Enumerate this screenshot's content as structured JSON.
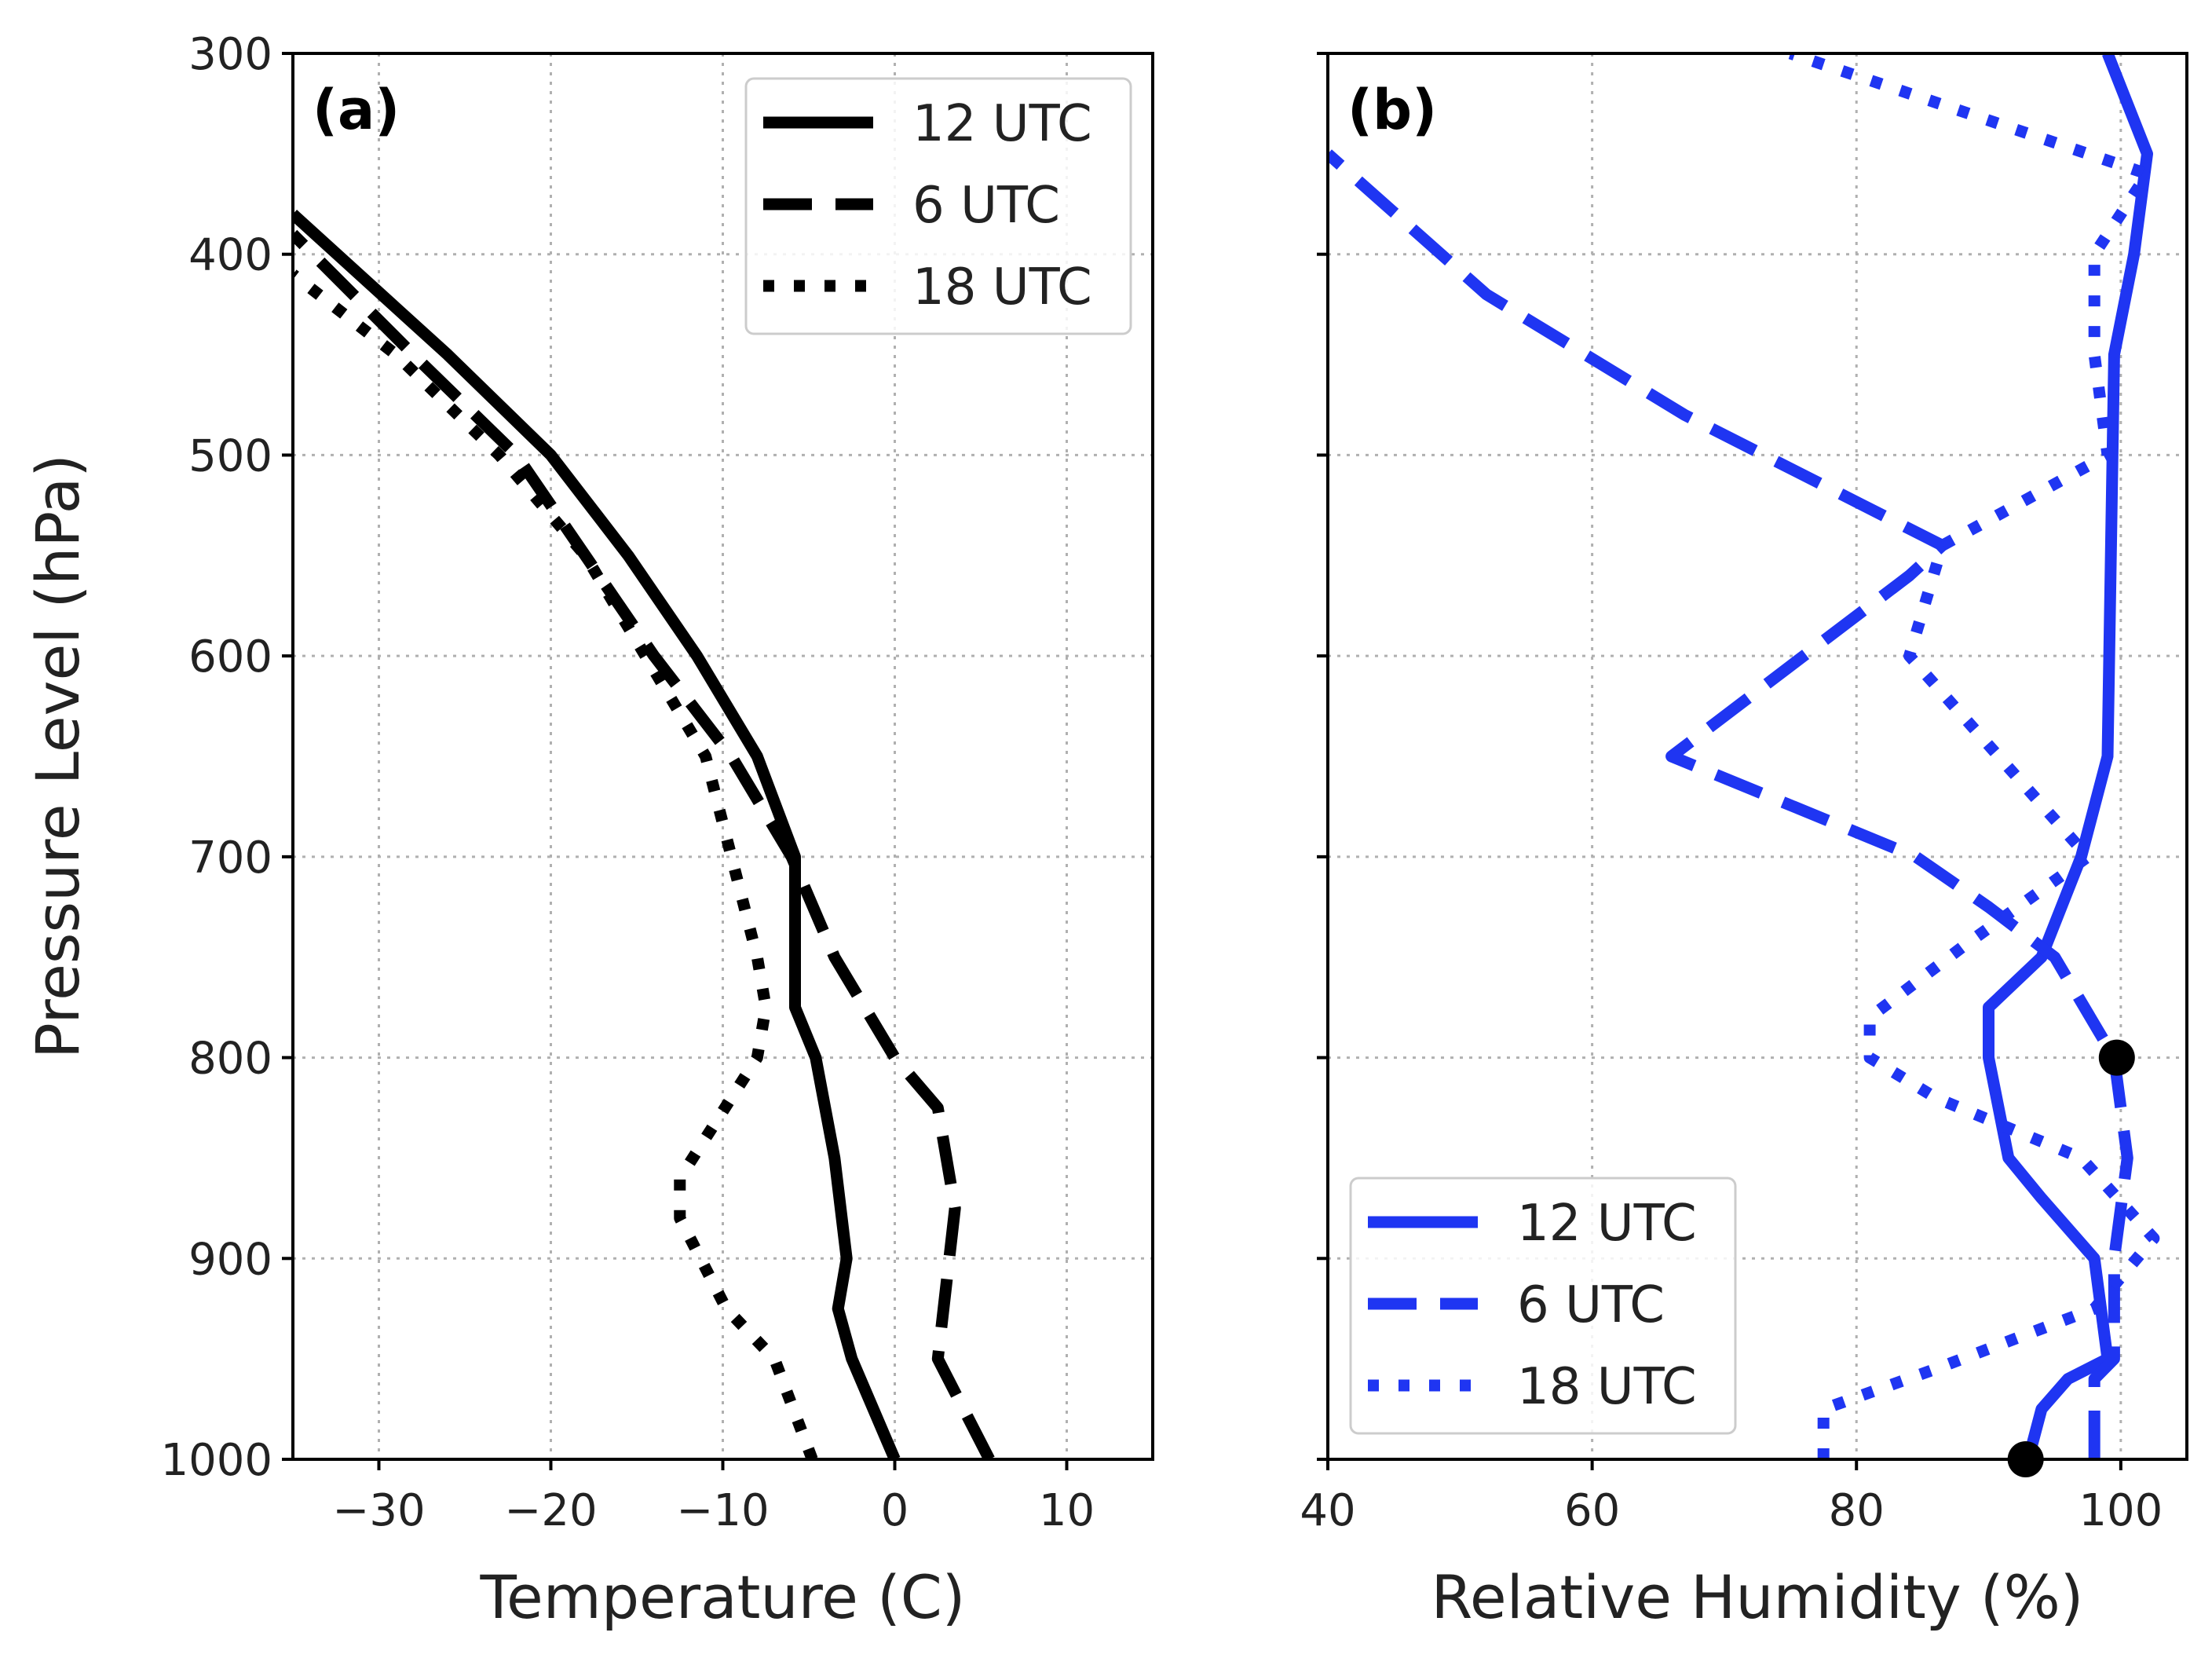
{
  "chart_data": [
    {
      "type": "line",
      "panel": "(a)",
      "xlabel": "Temperature (C)",
      "ylabel": "Pressure Level (hPa)",
      "xlim": [
        -35,
        15
      ],
      "ylim": [
        1000,
        300
      ],
      "xticks": [
        -30,
        -20,
        -10,
        0,
        10
      ],
      "xtick_labels": [
        "−30",
        "−20",
        "−10",
        "0",
        "10"
      ],
      "yticks": [
        300,
        400,
        500,
        600,
        700,
        800,
        900,
        1000
      ],
      "ytick_labels": [
        "300",
        "400",
        "500",
        "600",
        "700",
        "800",
        "900",
        "1000"
      ],
      "grid": true,
      "legend_position": "top-right",
      "color": "#000000",
      "series": [
        {
          "name": "12 UTC",
          "style": "solid",
          "points": [
            [
              0,
              1000
            ],
            [
              -2.5,
              950
            ],
            [
              -3.3,
              925
            ],
            [
              -2.8,
              900
            ],
            [
              -3.5,
              850
            ],
            [
              -4.6,
              800
            ],
            [
              -5.8,
              775
            ],
            [
              -5.8,
              700
            ],
            [
              -8,
              650
            ],
            [
              -11.5,
              600
            ],
            [
              -15.5,
              550
            ],
            [
              -20,
              500
            ],
            [
              -26,
              450
            ],
            [
              -35,
              380
            ]
          ]
        },
        {
          "name": "6 UTC",
          "style": "dashed",
          "points": [
            [
              5.5,
              1000
            ],
            [
              2.5,
              950
            ],
            [
              3.5,
              875
            ],
            [
              2.5,
              825
            ],
            [
              0,
              800
            ],
            [
              -3.5,
              750
            ],
            [
              -6,
              700
            ],
            [
              -9.5,
              650
            ],
            [
              -14,
              600
            ],
            [
              -18,
              550
            ],
            [
              -22,
              500
            ],
            [
              -28,
              450
            ],
            [
              -35,
              390
            ]
          ]
        },
        {
          "name": "18 UTC",
          "style": "dotted",
          "points": [
            [
              -4.8,
              1000
            ],
            [
              -7,
              950
            ],
            [
              -9.8,
              925
            ],
            [
              -12.5,
              880
            ],
            [
              -12.5,
              860
            ],
            [
              -8,
              800
            ],
            [
              -7.5,
              775
            ],
            [
              -8,
              750
            ],
            [
              -9.5,
              700
            ],
            [
              -11,
              650
            ],
            [
              -14.5,
              600
            ],
            [
              -18,
              550
            ],
            [
              -23,
              500
            ],
            [
              -29,
              450
            ],
            [
              -35,
              410
            ]
          ]
        }
      ]
    },
    {
      "type": "line",
      "panel": "(b)",
      "xlabel": "Relative Humidity (%)",
      "xlim": [
        40,
        105
      ],
      "ylim": [
        1000,
        300
      ],
      "xticks": [
        40,
        60,
        80,
        100
      ],
      "xtick_labels": [
        "40",
        "60",
        "80",
        "100"
      ],
      "yticks": [
        300,
        400,
        500,
        600,
        700,
        800,
        900,
        1000
      ],
      "grid": true,
      "legend_position": "bottom-left",
      "color": "#1f35f2",
      "series": [
        {
          "name": "12 UTC",
          "style": "solid",
          "points": [
            [
              93,
              1000
            ],
            [
              94,
              975
            ],
            [
              96,
              960
            ],
            [
              99,
              950
            ],
            [
              98,
              900
            ],
            [
              94,
              870
            ],
            [
              91.5,
              850
            ],
            [
              90,
              800
            ],
            [
              90,
              775
            ],
            [
              94,
              750
            ],
            [
              97,
              700
            ],
            [
              99,
              650
            ],
            [
              99.5,
              450
            ],
            [
              101,
              400
            ],
            [
              102,
              350
            ],
            [
              99,
              300
            ]
          ]
        },
        {
          "name": "6 UTC",
          "style": "dashed",
          "points": [
            [
              98,
              1000
            ],
            [
              98,
              960
            ],
            [
              99.5,
              950
            ],
            [
              99.5,
              900
            ],
            [
              100.5,
              850
            ],
            [
              99.5,
              800
            ],
            [
              95,
              750
            ],
            [
              90,
              725
            ],
            [
              84.5,
              700
            ],
            [
              66,
              650
            ],
            [
              84,
              560
            ],
            [
              86.5,
              545
            ],
            [
              67,
              480
            ],
            [
              52,
              420
            ],
            [
              40,
              350
            ]
          ]
        },
        {
          "name": "18 UTC",
          "style": "dotted",
          "points": [
            [
              77.5,
              1000
            ],
            [
              77.5,
              975
            ],
            [
              86,
              955
            ],
            [
              98,
              925
            ],
            [
              102.5,
              890
            ],
            [
              97,
              850
            ],
            [
              86,
              820
            ],
            [
              81,
              800
            ],
            [
              81,
              780
            ],
            [
              88,
              745
            ],
            [
              97.5,
              700
            ],
            [
              84,
              600
            ],
            [
              86.5,
              545
            ],
            [
              99,
              500
            ],
            [
              98,
              450
            ],
            [
              98,
              400
            ],
            [
              102,
              360
            ],
            [
              84,
              320
            ],
            [
              75,
              300
            ]
          ]
        }
      ],
      "markers": [
        [
          99.7,
          800
        ],
        [
          92.8,
          1000
        ]
      ]
    }
  ]
}
